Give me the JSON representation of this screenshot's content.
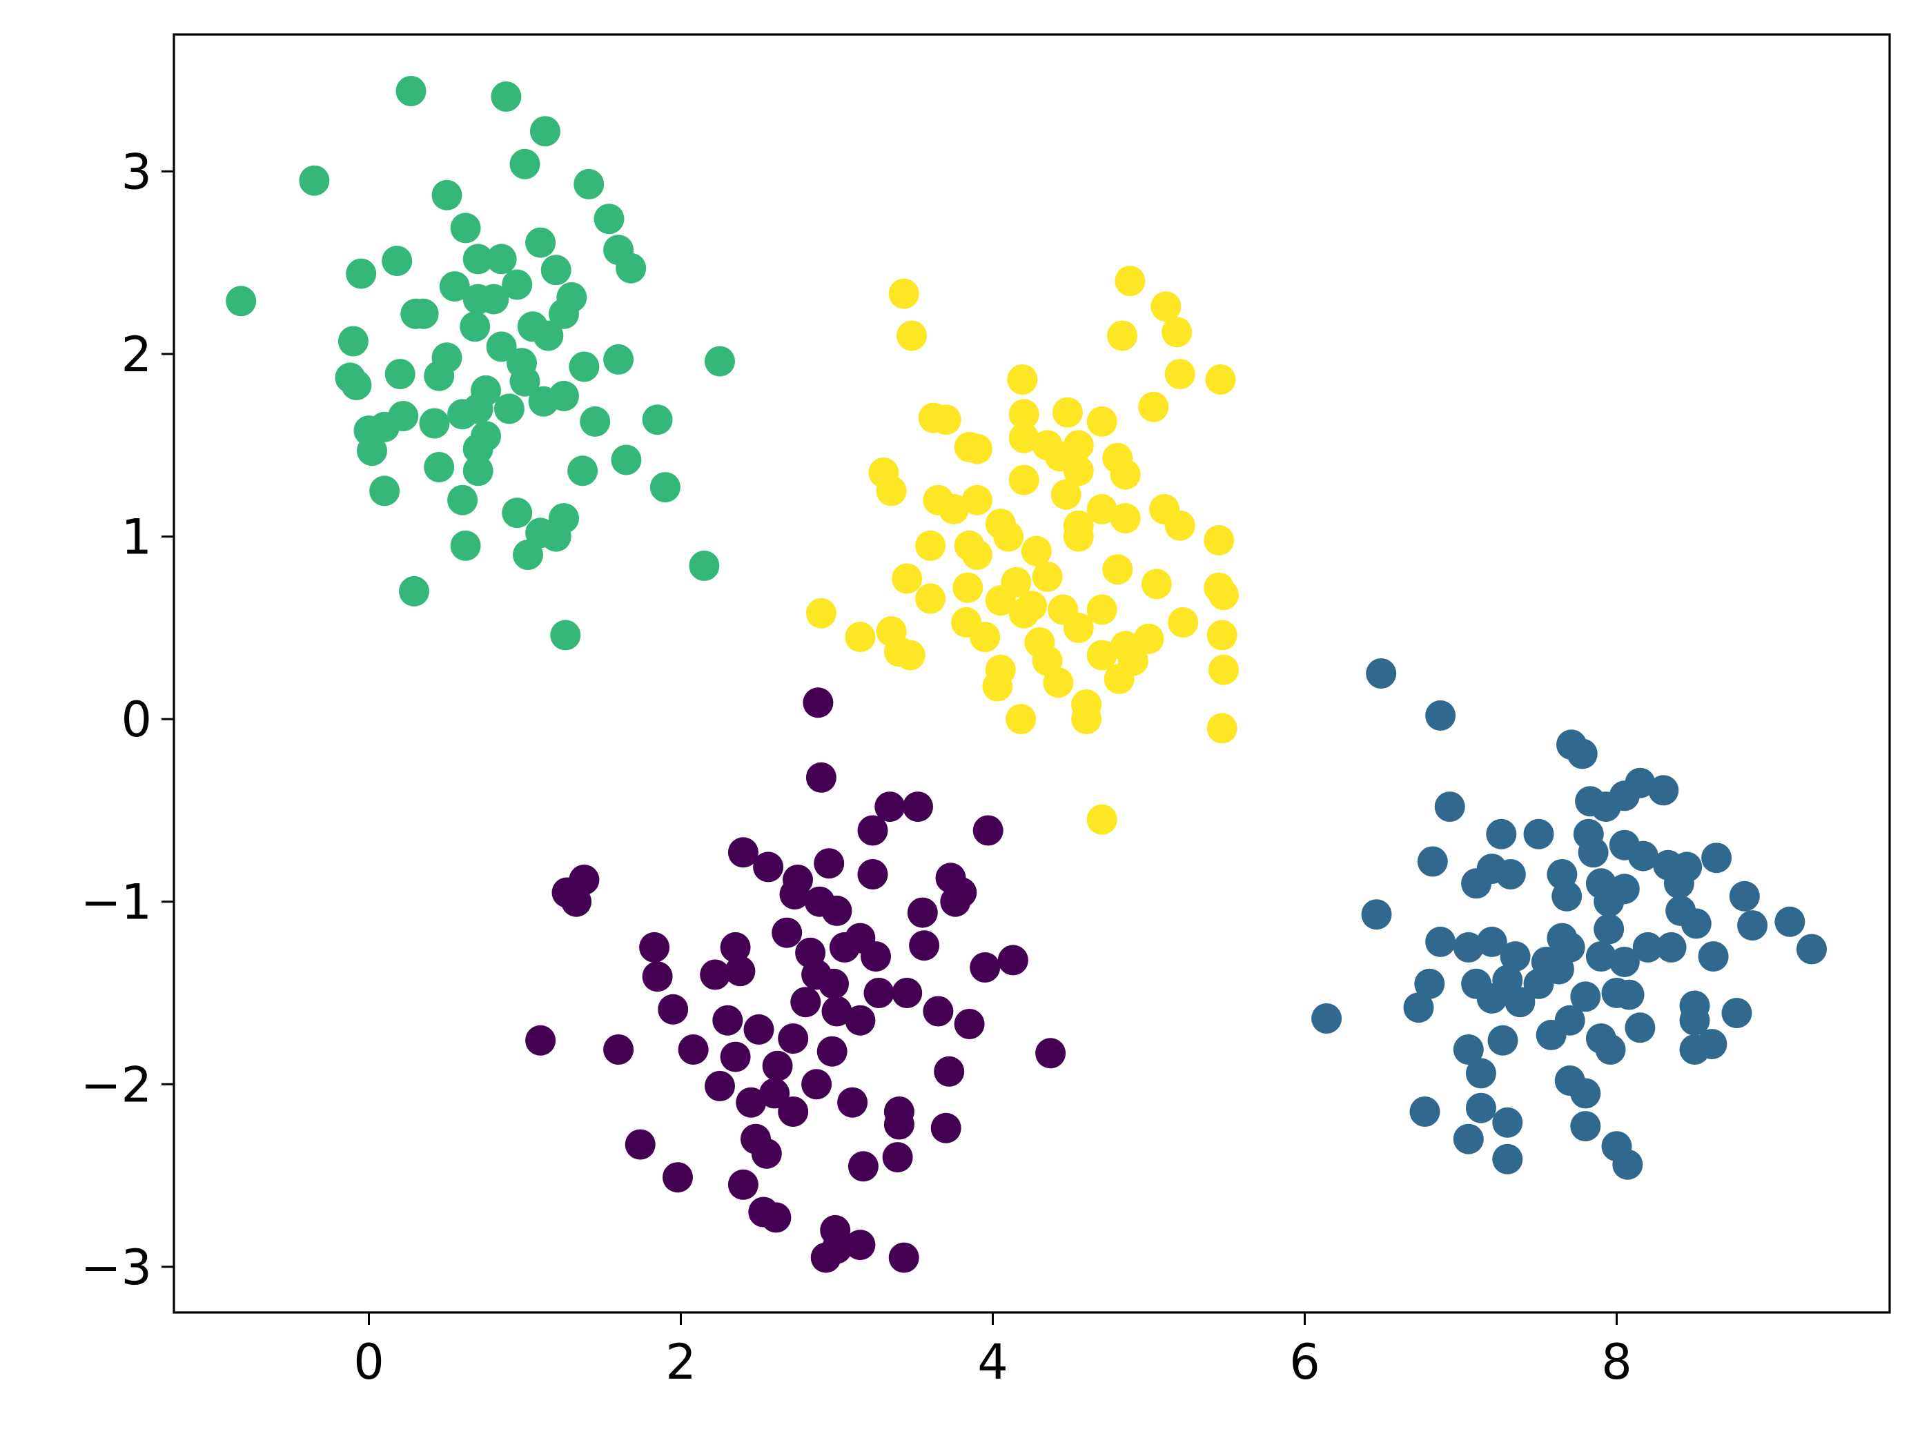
{
  "chart_data": {
    "type": "scatter",
    "title": "",
    "xlabel": "",
    "ylabel": "",
    "xlim": [
      -1.25,
      9.75
    ],
    "ylim": [
      -3.25,
      3.75
    ],
    "xticks": [
      0,
      2,
      4,
      6,
      8
    ],
    "yticks": [
      -3,
      -2,
      -1,
      0,
      1,
      2,
      3
    ],
    "xtick_labels": [
      "0",
      "2",
      "4",
      "6",
      "8"
    ],
    "ytick_labels": [
      "−3",
      "−2",
      "−1",
      "0",
      "1",
      "2",
      "3"
    ],
    "grid": false,
    "legend": "none",
    "series": [
      {
        "color": "#440154",
        "points": [
          [
            2.88,
            0.09
          ],
          [
            2.9,
            -0.32
          ],
          [
            3.34,
            -0.48
          ],
          [
            3.52,
            -0.48
          ],
          [
            3.97,
            -0.61
          ],
          [
            3.23,
            -0.61
          ],
          [
            2.4,
            -0.73
          ],
          [
            2.56,
            -0.81
          ],
          [
            1.27,
            -0.95
          ],
          [
            1.38,
            -0.88
          ],
          [
            1.33,
            -1.0
          ],
          [
            2.75,
            -0.88
          ],
          [
            2.95,
            -0.79
          ],
          [
            3.23,
            -0.85
          ],
          [
            3.73,
            -0.87
          ],
          [
            3.8,
            -0.95
          ],
          [
            3.76,
            -1.0
          ],
          [
            2.73,
            -0.96
          ],
          [
            2.89,
            -1.0
          ],
          [
            3.0,
            -1.05
          ],
          [
            3.55,
            -1.06
          ],
          [
            2.68,
            -1.17
          ],
          [
            3.15,
            -1.2
          ],
          [
            3.05,
            -1.25
          ],
          [
            2.83,
            -1.28
          ],
          [
            1.83,
            -1.25
          ],
          [
            2.35,
            -1.25
          ],
          [
            3.25,
            -1.3
          ],
          [
            3.56,
            -1.24
          ],
          [
            3.95,
            -1.36
          ],
          [
            4.13,
            -1.32
          ],
          [
            1.85,
            -1.41
          ],
          [
            2.22,
            -1.4
          ],
          [
            2.38,
            -1.38
          ],
          [
            2.87,
            -1.4
          ],
          [
            2.98,
            -1.45
          ],
          [
            3.27,
            -1.5
          ],
          [
            3.45,
            -1.5
          ],
          [
            3.65,
            -1.6
          ],
          [
            1.95,
            -1.59
          ],
          [
            2.3,
            -1.65
          ],
          [
            2.5,
            -1.7
          ],
          [
            2.72,
            -1.75
          ],
          [
            3.15,
            -1.65
          ],
          [
            3.85,
            -1.67
          ],
          [
            1.1,
            -1.76
          ],
          [
            1.6,
            -1.81
          ],
          [
            2.08,
            -1.81
          ],
          [
            2.35,
            -1.85
          ],
          [
            2.62,
            -1.9
          ],
          [
            2.97,
            -1.82
          ],
          [
            4.37,
            -1.83
          ],
          [
            3.72,
            -1.93
          ],
          [
            2.25,
            -2.01
          ],
          [
            2.6,
            -2.05
          ],
          [
            2.87,
            -2.0
          ],
          [
            2.45,
            -2.1
          ],
          [
            2.72,
            -2.15
          ],
          [
            3.1,
            -2.1
          ],
          [
            3.4,
            -2.15
          ],
          [
            3.4,
            -2.22
          ],
          [
            3.7,
            -2.24
          ],
          [
            1.74,
            -2.33
          ],
          [
            2.48,
            -2.3
          ],
          [
            2.55,
            -2.38
          ],
          [
            3.17,
            -2.45
          ],
          [
            3.39,
            -2.4
          ],
          [
            1.98,
            -2.51
          ],
          [
            2.4,
            -2.55
          ],
          [
            2.53,
            -2.7
          ],
          [
            2.61,
            -2.73
          ],
          [
            2.99,
            -2.8
          ],
          [
            3.15,
            -2.88
          ],
          [
            3.0,
            -2.9
          ],
          [
            2.93,
            -2.95
          ],
          [
            3.43,
            -2.95
          ],
          [
            2.8,
            -1.55
          ],
          [
            3.0,
            -1.6
          ]
        ]
      },
      {
        "color": "#31688e",
        "points": [
          [
            6.49,
            0.25
          ],
          [
            6.87,
            0.02
          ],
          [
            7.71,
            -0.14
          ],
          [
            7.78,
            -0.19
          ],
          [
            8.15,
            -0.35
          ],
          [
            8.3,
            -0.39
          ],
          [
            8.05,
            -0.42
          ],
          [
            7.93,
            -0.48
          ],
          [
            6.93,
            -0.48
          ],
          [
            7.83,
            -0.45
          ],
          [
            7.26,
            -0.63
          ],
          [
            7.5,
            -0.63
          ],
          [
            7.82,
            -0.63
          ],
          [
            7.85,
            -0.73
          ],
          [
            8.05,
            -0.69
          ],
          [
            8.17,
            -0.75
          ],
          [
            8.33,
            -0.8
          ],
          [
            8.45,
            -0.81
          ],
          [
            8.64,
            -0.76
          ],
          [
            6.82,
            -0.78
          ],
          [
            7.2,
            -0.82
          ],
          [
            7.1,
            -0.9
          ],
          [
            7.32,
            -0.85
          ],
          [
            7.65,
            -0.85
          ],
          [
            7.9,
            -0.9
          ],
          [
            8.05,
            -0.93
          ],
          [
            8.4,
            -0.9
          ],
          [
            8.82,
            -0.97
          ],
          [
            6.46,
            -1.07
          ],
          [
            7.68,
            -0.97
          ],
          [
            7.95,
            -1.0
          ],
          [
            8.41,
            -1.05
          ],
          [
            8.51,
            -1.12
          ],
          [
            8.87,
            -1.13
          ],
          [
            9.11,
            -1.11
          ],
          [
            6.87,
            -1.22
          ],
          [
            7.05,
            -1.25
          ],
          [
            7.2,
            -1.22
          ],
          [
            7.35,
            -1.3
          ],
          [
            7.55,
            -1.33
          ],
          [
            7.7,
            -1.25
          ],
          [
            7.9,
            -1.3
          ],
          [
            8.05,
            -1.33
          ],
          [
            8.2,
            -1.25
          ],
          [
            8.35,
            -1.25
          ],
          [
            8.62,
            -1.3
          ],
          [
            9.25,
            -1.26
          ],
          [
            6.8,
            -1.45
          ],
          [
            7.1,
            -1.45
          ],
          [
            7.3,
            -1.43
          ],
          [
            7.5,
            -1.45
          ],
          [
            7.63,
            -1.37
          ],
          [
            7.8,
            -1.52
          ],
          [
            8.0,
            -1.5
          ],
          [
            8.08,
            -1.51
          ],
          [
            8.5,
            -1.57
          ],
          [
            8.5,
            -1.65
          ],
          [
            8.77,
            -1.61
          ],
          [
            6.14,
            -1.64
          ],
          [
            6.73,
            -1.58
          ],
          [
            7.2,
            -1.53
          ],
          [
            7.38,
            -1.55
          ],
          [
            7.58,
            -1.73
          ],
          [
            7.7,
            -1.65
          ],
          [
            7.9,
            -1.75
          ],
          [
            7.96,
            -1.81
          ],
          [
            8.15,
            -1.69
          ],
          [
            8.5,
            -1.81
          ],
          [
            8.61,
            -1.78
          ],
          [
            7.05,
            -1.81
          ],
          [
            7.13,
            -1.94
          ],
          [
            7.27,
            -1.76
          ],
          [
            7.7,
            -1.98
          ],
          [
            7.8,
            -2.05
          ],
          [
            6.77,
            -2.15
          ],
          [
            7.13,
            -2.13
          ],
          [
            7.3,
            -2.21
          ],
          [
            7.8,
            -2.23
          ],
          [
            7.05,
            -2.3
          ],
          [
            7.3,
            -2.41
          ],
          [
            8.0,
            -2.34
          ],
          [
            8.07,
            -2.44
          ],
          [
            7.65,
            -1.2
          ],
          [
            7.95,
            -1.15
          ]
        ]
      },
      {
        "color": "#35b779",
        "points": [
          [
            0.27,
            3.44
          ],
          [
            0.88,
            3.41
          ],
          [
            1.13,
            3.22
          ],
          [
            -0.35,
            2.95
          ],
          [
            1.0,
            3.04
          ],
          [
            1.41,
            2.93
          ],
          [
            0.5,
            2.87
          ],
          [
            1.54,
            2.74
          ],
          [
            0.62,
            2.69
          ],
          [
            0.85,
            2.52
          ],
          [
            1.1,
            2.61
          ],
          [
            1.6,
            2.57
          ],
          [
            -0.05,
            2.44
          ],
          [
            0.18,
            2.51
          ],
          [
            0.7,
            2.52
          ],
          [
            1.2,
            2.46
          ],
          [
            1.68,
            2.47
          ],
          [
            0.55,
            2.37
          ],
          [
            0.95,
            2.38
          ],
          [
            1.3,
            2.31
          ],
          [
            0.35,
            2.22
          ],
          [
            0.3,
            2.22
          ],
          [
            0.68,
            2.15
          ],
          [
            1.05,
            2.15
          ],
          [
            1.25,
            2.22
          ],
          [
            -0.82,
            2.29
          ],
          [
            -0.1,
            2.07
          ],
          [
            0.85,
            2.04
          ],
          [
            1.15,
            2.1
          ],
          [
            0.5,
            1.98
          ],
          [
            1.6,
            1.97
          ],
          [
            2.25,
            1.96
          ],
          [
            0.2,
            1.89
          ],
          [
            0.45,
            1.88
          ],
          [
            0.75,
            1.8
          ],
          [
            1.0,
            1.85
          ],
          [
            1.38,
            1.93
          ],
          [
            -0.12,
            1.87
          ],
          [
            -0.08,
            1.83
          ],
          [
            0.7,
            1.7
          ],
          [
            0.9,
            1.7
          ],
          [
            1.12,
            1.74
          ],
          [
            1.25,
            1.77
          ],
          [
            1.45,
            1.63
          ],
          [
            1.85,
            1.64
          ],
          [
            0.0,
            1.58
          ],
          [
            0.1,
            1.6
          ],
          [
            0.22,
            1.66
          ],
          [
            0.42,
            1.62
          ],
          [
            0.6,
            1.67
          ],
          [
            0.75,
            1.55
          ],
          [
            0.02,
            1.47
          ],
          [
            0.7,
            1.48
          ],
          [
            1.65,
            1.42
          ],
          [
            0.45,
            1.38
          ],
          [
            0.7,
            1.36
          ],
          [
            1.37,
            1.36
          ],
          [
            0.1,
            1.25
          ],
          [
            0.6,
            1.2
          ],
          [
            1.9,
            1.27
          ],
          [
            0.95,
            1.13
          ],
          [
            1.25,
            1.1
          ],
          [
            1.1,
            1.02
          ],
          [
            1.2,
            1.0
          ],
          [
            0.62,
            0.95
          ],
          [
            1.02,
            0.9
          ],
          [
            2.15,
            0.84
          ],
          [
            0.29,
            0.7
          ],
          [
            1.26,
            0.46
          ],
          [
            0.8,
            2.3
          ],
          [
            0.98,
            1.95
          ],
          [
            0.7,
            2.3
          ]
        ]
      },
      {
        "color": "#fde725",
        "points": [
          [
            4.88,
            2.4
          ],
          [
            3.43,
            2.33
          ],
          [
            5.11,
            2.26
          ],
          [
            5.18,
            2.12
          ],
          [
            3.48,
            2.1
          ],
          [
            4.83,
            2.1
          ],
          [
            5.2,
            1.89
          ],
          [
            5.46,
            1.86
          ],
          [
            4.19,
            1.86
          ],
          [
            5.03,
            1.71
          ],
          [
            3.62,
            1.65
          ],
          [
            3.7,
            1.64
          ],
          [
            4.2,
            1.67
          ],
          [
            4.48,
            1.68
          ],
          [
            4.7,
            1.63
          ],
          [
            4.2,
            1.54
          ],
          [
            4.35,
            1.5
          ],
          [
            3.85,
            1.49
          ],
          [
            3.9,
            1.48
          ],
          [
            4.55,
            1.5
          ],
          [
            4.43,
            1.44
          ],
          [
            4.8,
            1.43
          ],
          [
            3.3,
            1.35
          ],
          [
            4.2,
            1.31
          ],
          [
            4.55,
            1.36
          ],
          [
            4.85,
            1.34
          ],
          [
            3.35,
            1.25
          ],
          [
            4.47,
            1.23
          ],
          [
            3.65,
            1.2
          ],
          [
            3.75,
            1.15
          ],
          [
            3.9,
            1.2
          ],
          [
            4.7,
            1.15
          ],
          [
            5.1,
            1.15
          ],
          [
            4.05,
            1.07
          ],
          [
            4.55,
            1.06
          ],
          [
            4.85,
            1.1
          ],
          [
            5.2,
            1.06
          ],
          [
            3.6,
            0.95
          ],
          [
            4.1,
            1.0
          ],
          [
            4.55,
            1.0
          ],
          [
            5.45,
            0.98
          ],
          [
            3.85,
            0.95
          ],
          [
            3.9,
            0.9
          ],
          [
            4.28,
            0.92
          ],
          [
            3.45,
            0.77
          ],
          [
            3.84,
            0.72
          ],
          [
            4.15,
            0.75
          ],
          [
            4.35,
            0.78
          ],
          [
            4.8,
            0.82
          ],
          [
            5.05,
            0.74
          ],
          [
            5.45,
            0.72
          ],
          [
            3.6,
            0.66
          ],
          [
            4.05,
            0.65
          ],
          [
            4.25,
            0.62
          ],
          [
            4.45,
            0.6
          ],
          [
            4.7,
            0.6
          ],
          [
            5.48,
            0.68
          ],
          [
            2.9,
            0.58
          ],
          [
            4.2,
            0.58
          ],
          [
            3.83,
            0.53
          ],
          [
            3.95,
            0.45
          ],
          [
            4.55,
            0.5
          ],
          [
            4.85,
            0.4
          ],
          [
            5.0,
            0.44
          ],
          [
            5.22,
            0.53
          ],
          [
            5.47,
            0.46
          ],
          [
            3.15,
            0.45
          ],
          [
            3.35,
            0.48
          ],
          [
            3.4,
            0.37
          ],
          [
            3.47,
            0.35
          ],
          [
            4.35,
            0.32
          ],
          [
            4.7,
            0.35
          ],
          [
            4.05,
            0.27
          ],
          [
            4.9,
            0.32
          ],
          [
            5.48,
            0.27
          ],
          [
            4.03,
            0.18
          ],
          [
            4.42,
            0.2
          ],
          [
            4.81,
            0.22
          ],
          [
            4.6,
            0.08
          ],
          [
            4.18,
            0.0
          ],
          [
            4.6,
            0.0
          ],
          [
            5.47,
            -0.05
          ],
          [
            4.7,
            -0.55
          ],
          [
            4.3,
            0.42
          ]
        ]
      }
    ]
  }
}
